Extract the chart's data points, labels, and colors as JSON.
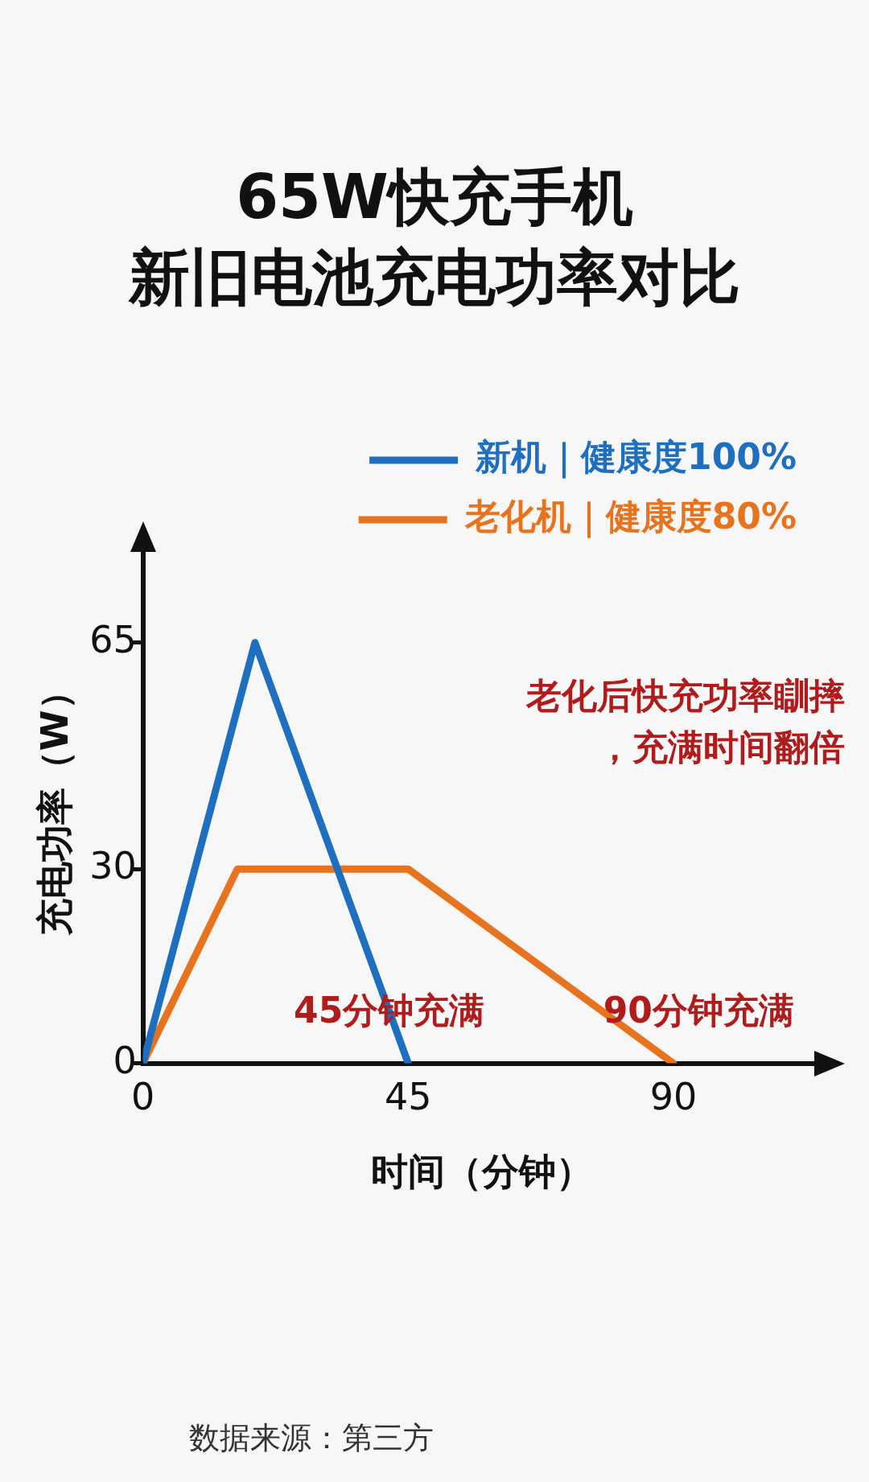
{
  "chart_data": {
    "type": "line",
    "title": "65W快充手机",
    "subtitle": "新旧电池充电功率对比",
    "xlabel": "时间（分钟）",
    "ylabel": "充电功率（W）",
    "xlim": [
      0,
      115
    ],
    "xticks": [
      0,
      45,
      90
    ],
    "ylim": [
      0,
      80
    ],
    "yticks": [
      0,
      30,
      65
    ],
    "series": [
      {
        "name": "新机｜健康度100%",
        "color": "#1f6fc0",
        "x": [
          0,
          19,
          45
        ],
        "values": [
          0,
          65,
          0
        ]
      },
      {
        "name": "老化机｜健康度80%",
        "color": "#e8731e",
        "x": [
          0,
          16,
          45,
          90
        ],
        "values": [
          0,
          30,
          30,
          0
        ]
      }
    ],
    "annotations": [
      "老化后快充功率瞓摔，充满时间翻倍",
      {
        "text": "45分钟充满",
        "x": 45,
        "y": 0
      },
      {
        "text": "90分钟充满",
        "x": 90,
        "y": 0
      },
      "数据来源：第三方"
    ],
    "legend": "top right",
    "grid": false,
    "marker": "none",
    "line_style": "solid"
  }
}
